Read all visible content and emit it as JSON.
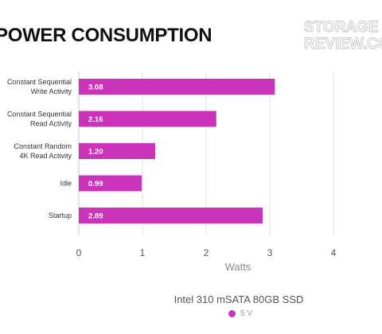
{
  "logo": {
    "line1": "STORAGE",
    "line2": "REVIEW.COM"
  },
  "chart_data": {
    "type": "bar",
    "orientation": "horizontal",
    "title": "POWER CONSUMPTION",
    "subtitle": "Intel 310 mSATA 80GB SSD",
    "xlabel": "Watts",
    "ylabel": "",
    "xlim": [
      0,
      4
    ],
    "xticks": [
      "0",
      "1",
      "2",
      "3",
      "4"
    ],
    "grid": true,
    "categories": [
      [
        "Constant Sequential",
        "Write Activity"
      ],
      [
        "Constant Sequential",
        "Read Activity"
      ],
      [
        "Constant Random",
        "4K Read Activity"
      ],
      [
        "Idle"
      ],
      [
        "Startup"
      ]
    ],
    "series": [
      {
        "name": "5 V",
        "color": "#cc33bb",
        "values": [
          3.08,
          2.16,
          1.2,
          0.99,
          2.89
        ]
      }
    ],
    "value_labels": [
      "3.08",
      "2.16",
      "1.20",
      "0.99",
      "2.89"
    ],
    "legend": {
      "position": "bottom-center"
    }
  }
}
